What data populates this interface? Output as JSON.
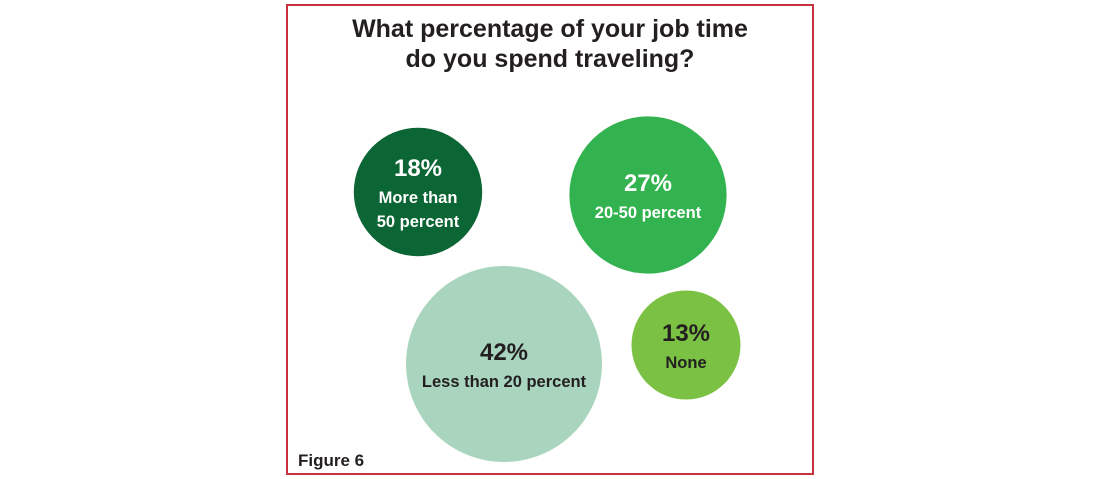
{
  "chart_data": {
    "type": "bubble",
    "title_lines": [
      "What percentage of your job time",
      "do you spend traveling?"
    ],
    "figure_label": "Figure 6",
    "points": [
      {
        "value": 18,
        "value_label": "18%",
        "label_lines": [
          "More than",
          "50 percent"
        ],
        "color": "#0b6534",
        "text_color": "#ffffff"
      },
      {
        "value": 27,
        "value_label": "27%",
        "label_lines": [
          "20-50 percent"
        ],
        "color": "#33b34f",
        "text_color": "#ffffff"
      },
      {
        "value": 42,
        "value_label": "42%",
        "label_lines": [
          "Less than 20 percent"
        ],
        "color": "#a9d4bd",
        "text_color": "#231f20"
      },
      {
        "value": 13,
        "value_label": "13%",
        "label_lines": [
          "None"
        ],
        "color": "#7bc143",
        "text_color": "#231f20"
      }
    ]
  }
}
